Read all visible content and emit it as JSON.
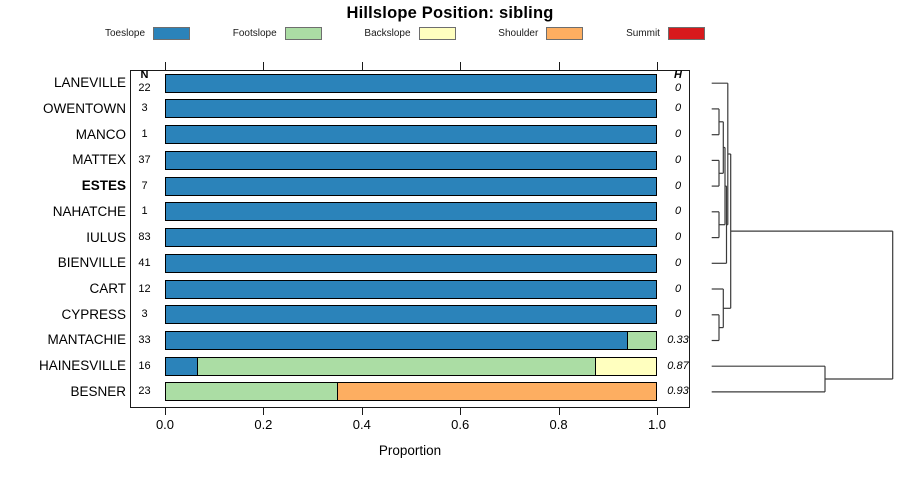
{
  "title": "Hillslope Position: sibling",
  "legend": [
    {
      "label": "Toeslope",
      "color": "#2B83BA"
    },
    {
      "label": "Footslope",
      "color": "#ABDDA4"
    },
    {
      "label": "Backslope",
      "color": "#FFFFBF"
    },
    {
      "label": "Shoulder",
      "color": "#FDAE61"
    },
    {
      "label": "Summit",
      "color": "#D7191C"
    }
  ],
  "chart_data": {
    "type": "bar",
    "stacked": true,
    "orientation": "horizontal",
    "xlabel": "Proportion",
    "xlim": [
      0,
      1
    ],
    "x_ticks": [
      "0.0",
      "0.2",
      "0.4",
      "0.6",
      "0.8",
      "1.0"
    ],
    "n_header": "N",
    "h_header": "H",
    "categories": [
      "Toeslope",
      "Footslope",
      "Backslope",
      "Shoulder",
      "Summit"
    ],
    "colors": {
      "Toeslope": "#2B83BA",
      "Footslope": "#ABDDA4",
      "Backslope": "#FFFFBF",
      "Shoulder": "#FDAE61",
      "Summit": "#D7191C"
    },
    "rows": [
      {
        "name": "LANEVILLE",
        "n": "22",
        "h": "0",
        "bold": false,
        "segments": [
          {
            "category": "Toeslope",
            "proportion": 1.0
          }
        ]
      },
      {
        "name": "OWENTOWN",
        "n": "3",
        "h": "0",
        "bold": false,
        "segments": [
          {
            "category": "Toeslope",
            "proportion": 1.0
          }
        ]
      },
      {
        "name": "MANCO",
        "n": "1",
        "h": "0",
        "bold": false,
        "segments": [
          {
            "category": "Toeslope",
            "proportion": 1.0
          }
        ]
      },
      {
        "name": "MATTEX",
        "n": "37",
        "h": "0",
        "bold": false,
        "segments": [
          {
            "category": "Toeslope",
            "proportion": 1.0
          }
        ]
      },
      {
        "name": "ESTES",
        "n": "7",
        "h": "0",
        "bold": true,
        "segments": [
          {
            "category": "Toeslope",
            "proportion": 1.0
          }
        ]
      },
      {
        "name": "NAHATCHE",
        "n": "1",
        "h": "0",
        "bold": false,
        "segments": [
          {
            "category": "Toeslope",
            "proportion": 1.0
          }
        ]
      },
      {
        "name": "IULUS",
        "n": "83",
        "h": "0",
        "bold": false,
        "segments": [
          {
            "category": "Toeslope",
            "proportion": 1.0
          }
        ]
      },
      {
        "name": "BIENVILLE",
        "n": "41",
        "h": "0",
        "bold": false,
        "segments": [
          {
            "category": "Toeslope",
            "proportion": 1.0
          }
        ]
      },
      {
        "name": "CART",
        "n": "12",
        "h": "0",
        "bold": false,
        "segments": [
          {
            "category": "Toeslope",
            "proportion": 1.0
          }
        ]
      },
      {
        "name": "CYPRESS",
        "n": "3",
        "h": "0",
        "bold": false,
        "segments": [
          {
            "category": "Toeslope",
            "proportion": 1.0
          }
        ]
      },
      {
        "name": "MANTACHIE",
        "n": "33",
        "h": "0.33",
        "bold": false,
        "segments": [
          {
            "category": "Toeslope",
            "proportion": 0.94
          },
          {
            "category": "Footslope",
            "proportion": 0.06
          }
        ]
      },
      {
        "name": "HAINESVILLE",
        "n": "16",
        "h": "0.87",
        "bold": false,
        "segments": [
          {
            "category": "Toeslope",
            "proportion": 0.0625
          },
          {
            "category": "Footslope",
            "proportion": 0.8125
          },
          {
            "category": "Backslope",
            "proportion": 0.125
          }
        ]
      },
      {
        "name": "BESNER",
        "n": "23",
        "h": "0.93",
        "bold": false,
        "segments": [
          {
            "category": "Footslope",
            "proportion": 0.348
          },
          {
            "category": "Shoulder",
            "proportion": 0.652
          }
        ]
      }
    ],
    "dendrogram": {
      "leaf_order_matches_rows": true,
      "segments": [
        [
          711.7,
          83.2,
          727.8,
          83.2
        ],
        [
          711.7,
          108.9,
          719.0,
          108.9
        ],
        [
          711.7,
          134.7,
          719.0,
          134.7
        ],
        [
          711.7,
          160.4,
          719.0,
          160.4
        ],
        [
          711.7,
          186.1,
          719.0,
          186.1
        ],
        [
          711.7,
          211.8,
          719.0,
          211.8
        ],
        [
          711.7,
          237.6,
          719.0,
          237.6
        ],
        [
          711.7,
          263.3,
          726.5,
          263.3
        ],
        [
          711.7,
          289.0,
          723.3,
          289.0
        ],
        [
          711.7,
          314.8,
          719.0,
          314.8
        ],
        [
          711.7,
          340.5,
          719.0,
          340.5
        ],
        [
          711.7,
          366.2,
          825.0,
          366.2
        ],
        [
          711.7,
          391.9,
          825.0,
          391.9
        ],
        [
          719.0,
          108.9,
          719.0,
          134.7
        ],
        [
          719.0,
          121.8,
          723.3,
          121.8
        ],
        [
          719.0,
          160.4,
          719.0,
          186.1
        ],
        [
          719.0,
          173.3,
          723.3,
          173.3
        ],
        [
          719.0,
          211.8,
          719.0,
          237.6
        ],
        [
          719.0,
          224.7,
          725.0,
          224.7
        ],
        [
          723.3,
          121.8,
          723.3,
          173.3
        ],
        [
          723.3,
          147.5,
          725.0,
          147.5
        ],
        [
          725.0,
          147.5,
          725.0,
          224.7
        ],
        [
          725.0,
          186.1,
          726.5,
          186.1
        ],
        [
          726.5,
          186.1,
          726.5,
          263.3
        ],
        [
          726.5,
          224.7,
          727.8,
          224.7
        ],
        [
          727.8,
          83.2,
          727.8,
          224.7
        ],
        [
          727.8,
          154.0,
          730.7,
          154.0
        ],
        [
          719.0,
          314.8,
          719.0,
          340.5
        ],
        [
          719.0,
          327.6,
          723.3,
          327.6
        ],
        [
          723.3,
          289.0,
          723.3,
          327.6
        ],
        [
          723.3,
          308.3,
          730.7,
          308.3
        ],
        [
          730.7,
          154.0,
          730.7,
          308.3
        ],
        [
          730.7,
          231.1,
          892.7,
          231.1
        ],
        [
          825.0,
          366.2,
          825.0,
          391.9
        ],
        [
          825.0,
          379.0,
          892.7,
          379.0
        ],
        [
          892.7,
          231.1,
          892.7,
          379.0
        ]
      ]
    }
  }
}
